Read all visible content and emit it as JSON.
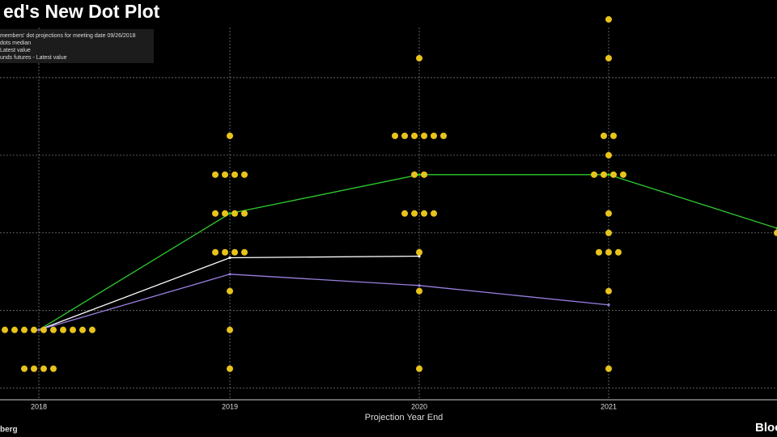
{
  "chart_data": {
    "type": "dot_plot",
    "title": "ed's New Dot Plot",
    "x_label": "Projection Year End",
    "categories": [
      "2018",
      "2019",
      "2020",
      "2021",
      null
    ],
    "ylim": [
      1.925,
      4.5
    ],
    "yticks": [
      2,
      2.5,
      3,
      3.5,
      4
    ],
    "grid": true,
    "dots": {
      "name": "members' dot projections for meeting date 09/26/2018",
      "color": "#e8c31c",
      "values": [
        [
          2.375,
          2.375,
          2.375,
          2.375,
          2.375,
          2.375,
          2.375,
          2.375,
          2.375,
          2.375,
          2.375,
          2.375,
          2.125,
          2.125,
          2.125,
          2.125
        ],
        [
          3.625,
          3.375,
          3.375,
          3.375,
          3.375,
          3.125,
          3.125,
          3.125,
          3.125,
          2.875,
          2.875,
          2.875,
          2.875,
          2.625,
          2.375,
          2.125
        ],
        [
          4.125,
          3.625,
          3.625,
          3.625,
          3.625,
          3.625,
          3.625,
          3.375,
          3.375,
          3.125,
          3.125,
          3.125,
          3.125,
          2.875,
          2.625,
          2.125
        ],
        [
          4.375,
          4.125,
          3.625,
          3.625,
          3.5,
          3.375,
          3.375,
          3.375,
          3.375,
          3.125,
          3,
          2.875,
          2.875,
          2.875,
          2.625,
          2.125
        ],
        [
          3
        ]
      ]
    },
    "series": [
      {
        "name": "dots  median",
        "color": "#2ecc2e",
        "values": [
          2.375,
          3.125,
          3.375,
          3.375,
          3.03
        ]
      },
      {
        "name": "Latest value",
        "color": "#ffffff",
        "values": [
          2.375,
          2.84,
          2.85,
          null,
          null
        ]
      },
      {
        "name": "unds futures - Latest value",
        "color": "#9a7fe0",
        "values": [
          2.375,
          2.734,
          2.661,
          2.536,
          null
        ]
      }
    ],
    "source": "berg",
    "brand": "Bloo"
  }
}
